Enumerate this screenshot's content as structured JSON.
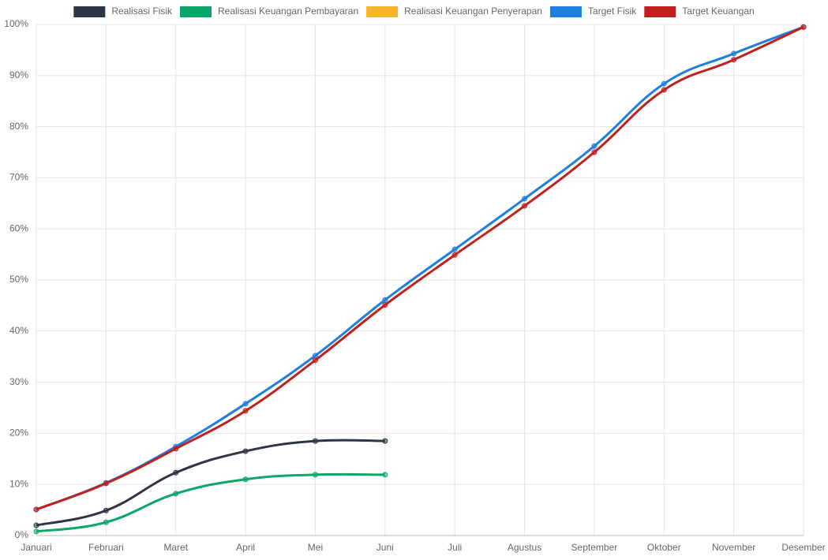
{
  "chart_data": {
    "type": "line",
    "categories": [
      "Januari",
      "Februari",
      "Maret",
      "April",
      "Mei",
      "Juni",
      "Juli",
      "Agustus",
      "September",
      "Oktober",
      "November",
      "Desember"
    ],
    "series": [
      {
        "name": "Realisasi Fisik",
        "color": "#2d3446",
        "values": [
          2.0,
          4.9,
          12.3,
          16.5,
          18.5,
          18.5,
          null,
          null,
          null,
          null,
          null,
          null
        ]
      },
      {
        "name": "Realisasi Keuangan Pembayaran",
        "color": "#0aa66a",
        "values": [
          0.8,
          2.6,
          8.2,
          11.0,
          11.9,
          11.9,
          null,
          null,
          null,
          null,
          null,
          null
        ]
      },
      {
        "name": "Realisasi Keuangan Penyerapan",
        "color": "#f7b52c",
        "values": [
          null,
          null,
          null,
          null,
          null,
          null,
          null,
          null,
          null,
          null,
          null,
          null
        ]
      },
      {
        "name": "Target Fisik",
        "color": "#1e7fe0",
        "values": [
          5.1,
          10.3,
          17.4,
          25.8,
          35.2,
          46.1,
          56.0,
          65.9,
          76.2,
          88.4,
          94.3,
          99.5
        ]
      },
      {
        "name": "Target Keuangan",
        "color": "#c0201e",
        "values": [
          5.1,
          10.2,
          17.0,
          24.4,
          34.3,
          45.1,
          54.9,
          64.5,
          75.0,
          87.2,
          93.1,
          99.5
        ]
      }
    ],
    "ylim": [
      0,
      100
    ],
    "yticks": [
      {
        "value": 0,
        "label": "0%"
      },
      {
        "value": 10,
        "label": "10%"
      },
      {
        "value": 20,
        "label": "20%"
      },
      {
        "value": 30,
        "label": "30%"
      },
      {
        "value": 40,
        "label": "40%"
      },
      {
        "value": 50,
        "label": "50%"
      },
      {
        "value": 60,
        "label": "60%"
      },
      {
        "value": 70,
        "label": "70%"
      },
      {
        "value": 80,
        "label": "80%"
      },
      {
        "value": 90,
        "label": "90%"
      },
      {
        "value": 100,
        "label": "100%"
      }
    ],
    "grid": true,
    "legend": "top"
  }
}
